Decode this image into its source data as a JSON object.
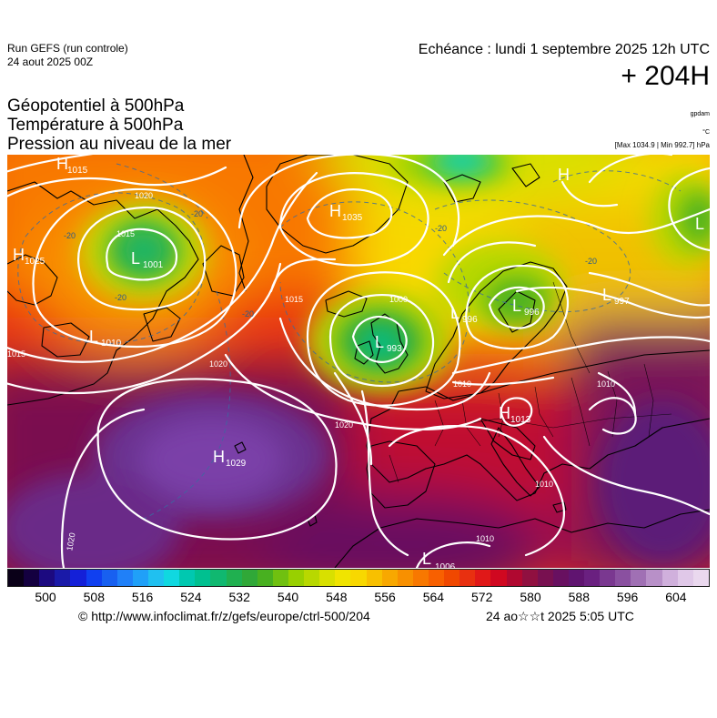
{
  "header": {
    "run_label": "Run GEFS (run controle)",
    "run_date": "24 aout 2025 00Z",
    "echeance": "Echéance : lundi 1 septembre 2025 12h UTC",
    "lead_time": "+ 204H"
  },
  "titles": {
    "line1": "Géopotentiel à 500hPa",
    "line2": "Température à 500hPa",
    "line3": "Pression au niveau de la mer"
  },
  "units": {
    "geopotential": "gpdam",
    "temperature": "°C",
    "minmax": "[Max 1034.9 | Min 992.7] hPa"
  },
  "pressure_centers": [
    {
      "type": "H",
      "value": "1015"
    },
    {
      "type": "H",
      "value": "1025"
    },
    {
      "type": "L",
      "value": "1001"
    },
    {
      "type": "H",
      "value": "1035"
    },
    {
      "type": "L",
      "value": "1010"
    },
    {
      "type": "L",
      "value": "993"
    },
    {
      "type": "L",
      "value": "996"
    },
    {
      "type": "L",
      "value": "996"
    },
    {
      "type": "L",
      "value": "997"
    },
    {
      "type": "H",
      "value": "1029"
    },
    {
      "type": "H",
      "value": "1013"
    },
    {
      "type": "L",
      "value": "1006"
    },
    {
      "type": "H",
      "value": ""
    },
    {
      "type": "L",
      "value": ""
    }
  ],
  "isobar_labels": [
    "1020",
    "1020",
    "1020",
    "1020",
    "1015",
    "1015",
    "1000",
    "1010",
    "1010",
    "1010",
    "1010",
    "1015"
  ],
  "isotherm_labels": [
    "-20",
    "-20",
    "-20",
    "-20",
    "-20",
    "-20"
  ],
  "colors": {
    "purple_high": "#5b1480",
    "violet": "#6a3fa8",
    "dark_red": "#a0103a",
    "red": "#e8191a",
    "orange": "#ff7f00",
    "yellow": "#f6e200",
    "green": "#3fbf2c",
    "isobar": "#ffffff",
    "coast": "#000000"
  },
  "scale": {
    "ticks": [
      "500",
      "508",
      "516",
      "524",
      "532",
      "540",
      "548",
      "556",
      "564",
      "572",
      "580",
      "588",
      "596",
      "604"
    ],
    "colors": [
      "#0a0018",
      "#140040",
      "#1c0a80",
      "#1a1aa8",
      "#1420d8",
      "#1040f0",
      "#1860f0",
      "#2080f8",
      "#20a0f8",
      "#20c0f0",
      "#10d8e0",
      "#00c8b0",
      "#00c090",
      "#10b870",
      "#20b050",
      "#30a838",
      "#48b020",
      "#70c010",
      "#98d000",
      "#b8d800",
      "#d8e000",
      "#f0e400",
      "#f8d800",
      "#f8c000",
      "#f8a800",
      "#f89000",
      "#f87800",
      "#f86000",
      "#f04800",
      "#e83010",
      "#e01818",
      "#d00820",
      "#b00830",
      "#901040",
      "#781050",
      "#681060",
      "#601470",
      "#6a2080",
      "#7a3890",
      "#8a50a0",
      "#a070b4",
      "#b890c8",
      "#d0b0dc",
      "#e0c8e8",
      "#ead8ee"
    ]
  },
  "footer": {
    "source_url": "© http://www.infoclimat.fr/z/gefs/europe/ctrl-500/204",
    "generated": "24 ao☆☆t 2025  5:05 UTC"
  }
}
